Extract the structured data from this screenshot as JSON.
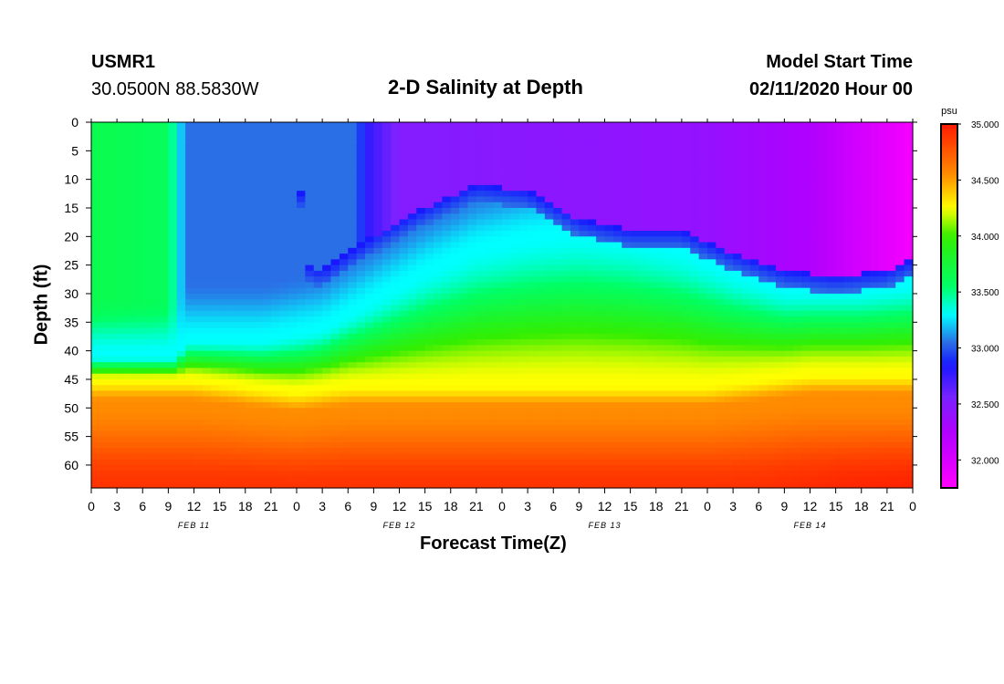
{
  "header": {
    "station_id": "USMR1",
    "coordinates": "30.0500N 88.5830W",
    "title": "2-D Salinity at Depth",
    "model_start_label": "Model Start Time",
    "model_start_value": "02/11/2020 Hour 00"
  },
  "chart_data": {
    "type": "heatmap",
    "title": "2-D Salinity at Depth",
    "xlabel": "Forecast Time(Z)",
    "ylabel": "Depth (ft)",
    "x_unit": "forecast hours",
    "xlim": [
      0,
      96
    ],
    "ylim": [
      0,
      64
    ],
    "x_ticks": [
      0,
      3,
      6,
      9,
      12,
      15,
      18,
      21,
      24,
      27,
      30,
      33,
      36,
      39,
      42,
      45,
      48,
      51,
      54,
      57,
      60,
      63,
      66,
      69,
      72,
      75,
      78,
      81,
      84,
      87,
      90,
      93,
      96
    ],
    "x_tick_labels": [
      "0",
      "3",
      "6",
      "9",
      "12",
      "15",
      "18",
      "21",
      "0",
      "3",
      "6",
      "9",
      "12",
      "15",
      "18",
      "21",
      "0",
      "3",
      "6",
      "9",
      "12",
      "15",
      "18",
      "21",
      "0",
      "3",
      "6",
      "9",
      "12",
      "15",
      "18",
      "21",
      "0"
    ],
    "day_labels": [
      {
        "hour": 12,
        "label": "FEB 11"
      },
      {
        "hour": 36,
        "label": "FEB 12"
      },
      {
        "hour": 60,
        "label": "FEB 13"
      },
      {
        "hour": 84,
        "label": "FEB 14"
      }
    ],
    "y_ticks": [
      0,
      5,
      10,
      15,
      20,
      25,
      30,
      35,
      40,
      45,
      50,
      55,
      60
    ],
    "colorbar": {
      "unit": "psu",
      "min": 31.75,
      "max": 35.0,
      "ticks": [
        35.0,
        34.5,
        34.0,
        33.5,
        33.0,
        32.5,
        32.0
      ],
      "tick_labels": [
        "35.000",
        "34.500",
        "34.000",
        "33.500",
        "33.000",
        "32.500",
        "32.000"
      ],
      "colors": [
        {
          "v": 31.75,
          "c": "#ff00ff"
        },
        {
          "v": 32.25,
          "c": "#b000ff"
        },
        {
          "v": 32.55,
          "c": "#7a22ff"
        },
        {
          "v": 32.85,
          "c": "#1818ff"
        },
        {
          "v": 33.05,
          "c": "#2a6fe6"
        },
        {
          "v": 33.3,
          "c": "#00ffff"
        },
        {
          "v": 33.55,
          "c": "#00ff66"
        },
        {
          "v": 34.0,
          "c": "#33ee00"
        },
        {
          "v": 34.25,
          "c": "#ffff00"
        },
        {
          "v": 34.55,
          "c": "#ff8c00"
        },
        {
          "v": 35.0,
          "c": "#ff1a00"
        }
      ]
    },
    "halocline_base_depth_ft": [
      {
        "hour": 0,
        "depth": 45
      },
      {
        "hour": 12,
        "depth": 45
      },
      {
        "hour": 18,
        "depth": 46
      },
      {
        "hour": 24,
        "depth": 47
      },
      {
        "hour": 30,
        "depth": 46
      },
      {
        "hour": 48,
        "depth": 46
      },
      {
        "hour": 72,
        "depth": 46
      },
      {
        "hour": 78,
        "depth": 45
      },
      {
        "hour": 84,
        "depth": 44
      },
      {
        "hour": 96,
        "depth": 44
      }
    ],
    "fresh_top_depth_ft": [
      {
        "hour": 0,
        "depth": 43
      },
      {
        "hour": 10,
        "depth": 43
      },
      {
        "hour": 11,
        "depth": 40
      },
      {
        "hour": 15,
        "depth": 40
      },
      {
        "hour": 20,
        "depth": 40
      },
      {
        "hour": 27,
        "depth": 38
      },
      {
        "hour": 33,
        "depth": 33
      },
      {
        "hour": 39,
        "depth": 28
      },
      {
        "hour": 45,
        "depth": 24
      },
      {
        "hour": 51,
        "depth": 22
      },
      {
        "hour": 57,
        "depth": 21
      },
      {
        "hour": 63,
        "depth": 22
      },
      {
        "hour": 69,
        "depth": 24
      },
      {
        "hour": 72,
        "depth": 26
      },
      {
        "hour": 75,
        "depth": 28
      },
      {
        "hour": 81,
        "depth": 31
      },
      {
        "hour": 90,
        "depth": 31
      },
      {
        "hour": 96,
        "depth": 30
      }
    ],
    "purple_layer_base_depth_ft": [
      {
        "hour": 0,
        "depth": 0
      },
      {
        "hour": 24,
        "depth": 0
      },
      {
        "hour": 25,
        "depth": 25
      },
      {
        "hour": 27,
        "depth": 26
      },
      {
        "hour": 33,
        "depth": 20
      },
      {
        "hour": 39,
        "depth": 15
      },
      {
        "hour": 45,
        "depth": 11
      },
      {
        "hour": 51,
        "depth": 12
      },
      {
        "hour": 57,
        "depth": 17
      },
      {
        "hour": 63,
        "depth": 19
      },
      {
        "hour": 69,
        "depth": 19
      },
      {
        "hour": 75,
        "depth": 23
      },
      {
        "hour": 81,
        "depth": 26
      },
      {
        "hour": 87,
        "depth": 27
      },
      {
        "hour": 93,
        "depth": 26
      },
      {
        "hour": 96,
        "depth": 24
      }
    ],
    "surface_salinity_by_hour": [
      {
        "hour": 0,
        "psu": 33.65
      },
      {
        "hour": 9,
        "psu": 33.6
      },
      {
        "hour": 10,
        "psu": 33.35
      },
      {
        "hour": 11,
        "psu": 33.05
      },
      {
        "hour": 31,
        "psu": 33.05
      },
      {
        "hour": 32,
        "psu": 32.8
      },
      {
        "hour": 36,
        "psu": 32.5
      },
      {
        "hour": 72,
        "psu": 32.4
      },
      {
        "hour": 84,
        "psu": 32.25
      },
      {
        "hour": 96,
        "psu": 31.8
      }
    ]
  }
}
